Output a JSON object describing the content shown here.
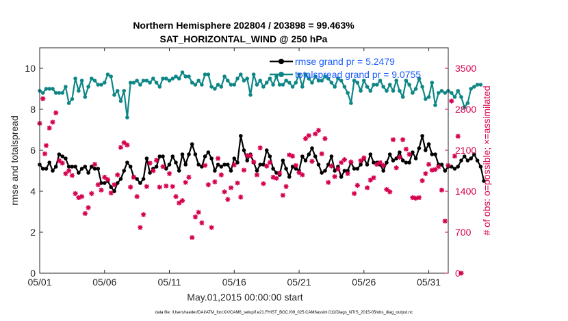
{
  "chart_data": {
    "type": "line",
    "title": "Northern Hemisphere 202804 / 203898 = 99.463%",
    "subtitle": "SAT_HORIZONTAL_WIND @ 250 hPa",
    "xlabel": "May.01,2015 00:00:00 start",
    "ylabel": "rmse and totalspread",
    "ylabel_right": "# of obs: o=possible; ×=assimilated",
    "footnote": "data file: /Users/raeder/DAI/ATM_forcXX/CAM6_setup/f.e21.FHIST_BGC.f09_025.CAM6assim.011/Diags_NTrS_2015-05/obs_diag_output.nc",
    "xlim": [
      0,
      31.5
    ],
    "ylim": [
      0,
      11
    ],
    "ylim_right": [
      0,
      3850
    ],
    "x_tick_labels": [
      "05/01",
      "05/06",
      "05/11",
      "05/16",
      "05/21",
      "05/26",
      "05/31"
    ],
    "x_tick_values": [
      0,
      5,
      10,
      15,
      20,
      25,
      30
    ],
    "y_tick_labels": [
      "0",
      "2",
      "4",
      "6",
      "8",
      "10"
    ],
    "y_tick_values": [
      0,
      2,
      4,
      6,
      8,
      10
    ],
    "y_right_tick_labels": [
      "0",
      "700",
      "1400",
      "2100",
      "2800",
      "3500"
    ],
    "y_right_tick_values": [
      0,
      700,
      1400,
      2100,
      2800,
      3500
    ],
    "legend": [
      {
        "label": "rmse grand pr = 5.2479",
        "color": "#000000"
      },
      {
        "label": "totalspread grand pr = 9.0755",
        "color": "#0e8686"
      }
    ],
    "colors": {
      "rmse": "#000000",
      "spread": "#0e8686",
      "obs": "#d6004f",
      "legend_text": "#1a5cff"
    },
    "x_step_days": 0.25,
    "series": [
      {
        "name": "rmse",
        "values": [
          5.3,
          5.1,
          5.1,
          5.4,
          5.0,
          5.2,
          5.8,
          5.7,
          5.6,
          5.2,
          5.2,
          5.2,
          4.9,
          5.1,
          5.2,
          4.9,
          5.2,
          5.1,
          5.1,
          4.4,
          4.4,
          4.5,
          4.2,
          4.0,
          4.4,
          4.6,
          5.0,
          5.4,
          5.2,
          4.7,
          4.6,
          4.4,
          4.6,
          5.6,
          4.9,
          5.1,
          5.2,
          5.7,
          5.7,
          5.1,
          5.3,
          5.7,
          5.4,
          5.0,
          5.8,
          5.3,
          5.8,
          6.3,
          5.8,
          5.3,
          5.2,
          5.7,
          5.9,
          5.6,
          5.0,
          5.3,
          5.2,
          5.3,
          5.3,
          5.0,
          5.6,
          5.4,
          6.7,
          6.0,
          5.5,
          5.8,
          5.4,
          5.0,
          5.3,
          5.3,
          6.0,
          5.7,
          5.1,
          4.9,
          4.8,
          5.5,
          5.1,
          4.7,
          5.2,
          5.1,
          5.0,
          5.7,
          5.5,
          5.8,
          6.1,
          5.7,
          5.3,
          4.9,
          5.0,
          5.3,
          5.7,
          5.0,
          5.2,
          4.7,
          5.0,
          5.0,
          5.4,
          5.1,
          5.1,
          5.3,
          5.6,
          5.3,
          5.8,
          5.4,
          5.4,
          5.3,
          5.0,
          5.4,
          5.8,
          5.5,
          5.6,
          5.9,
          5.5,
          5.4,
          5.4,
          5.9,
          5.6,
          6.1,
          6.7,
          6.0,
          6.3,
          5.8,
          5.8,
          5.3,
          5.3,
          5.0,
          5.2,
          5.2,
          5.1,
          5.2,
          5.5,
          5.7,
          5.5,
          5.6,
          5.8,
          5.5,
          5.2,
          4.5
        ]
      },
      {
        "name": "totalspread",
        "values": [
          8.9,
          8.8,
          9.0,
          9.0,
          9.0,
          8.8,
          8.8,
          8.8,
          9.1,
          8.3,
          8.5,
          9.5,
          8.9,
          9.4,
          8.6,
          9.1,
          9.5,
          9.4,
          9.2,
          9.2,
          9.3,
          9.7,
          9.6,
          8.7,
          8.9,
          8.4,
          8.9,
          7.6,
          9.3,
          9.3,
          9.4,
          9.2,
          9.4,
          9.4,
          9.3,
          9.5,
          9.3,
          9.1,
          9.5,
          9.5,
          9.4,
          9.5,
          9.6,
          9.5,
          9.8,
          9.6,
          9.6,
          9.3,
          9.2,
          9.4,
          9.2,
          9.7,
          9.7,
          9.1,
          9.0,
          9.2,
          9.1,
          9.6,
          9.4,
          9.2,
          9.2,
          9.5,
          9.7,
          9.4,
          9.5,
          8.7,
          9.7,
          9.2,
          9.4,
          9.1,
          9.3,
          9.5,
          9.2,
          9.6,
          9.2,
          9.2,
          9.4,
          9.3,
          9.1,
          9.3,
          9.7,
          9.1,
          9.7,
          9.5,
          9.3,
          9.6,
          9.4,
          9.4,
          9.6,
          9.5,
          9.3,
          9.1,
          9.5,
          9.4,
          9.1,
          8.8,
          8.3,
          9.4,
          9.3,
          8.9,
          9.4,
          9.1,
          8.9,
          9.2,
          9.2,
          9.4,
          9.1,
          8.9,
          9.2,
          8.9,
          9.4,
          8.9,
          8.6,
          9.4,
          9.2,
          8.8,
          9.0,
          9.5,
          9.1,
          8.5,
          8.6,
          9.3,
          8.2,
          8.8,
          8.9,
          8.8,
          8.9,
          8.8,
          8.6,
          8.9,
          8.6,
          8.1,
          8.3,
          9.0,
          9.1,
          9.2,
          9.2
        ]
      }
    ],
    "obs_points": [
      [
        0.0,
        2560
      ],
      [
        0.25,
        2980
      ],
      [
        0.4,
        2040
      ],
      [
        0.5,
        2180
      ],
      [
        0.75,
        2480
      ],
      [
        1.0,
        2580
      ],
      [
        1.25,
        2740
      ],
      [
        1.5,
        1920
      ],
      [
        1.75,
        1880
      ],
      [
        2.0,
        1700
      ],
      [
        2.25,
        1750
      ],
      [
        2.5,
        1670
      ],
      [
        2.75,
        1360
      ],
      [
        3.0,
        1290
      ],
      [
        3.25,
        1310
      ],
      [
        3.5,
        1020
      ],
      [
        3.75,
        1120
      ],
      [
        4.0,
        1360
      ],
      [
        4.25,
        1860
      ],
      [
        4.5,
        1510
      ],
      [
        4.75,
        1420
      ],
      [
        5.0,
        1640
      ],
      [
        5.25,
        1600
      ],
      [
        5.5,
        1370
      ],
      [
        5.75,
        1510
      ],
      [
        6.0,
        1680
      ],
      [
        6.25,
        2150
      ],
      [
        6.5,
        2230
      ],
      [
        6.75,
        2190
      ],
      [
        7.0,
        1470
      ],
      [
        7.25,
        1640
      ],
      [
        7.5,
        1310
      ],
      [
        7.75,
        780
      ],
      [
        8.0,
        1000
      ],
      [
        8.25,
        1480
      ],
      [
        8.5,
        1880
      ],
      [
        8.75,
        1750
      ],
      [
        9.0,
        1930
      ],
      [
        9.25,
        1470
      ],
      [
        9.5,
        1820
      ],
      [
        9.75,
        1490
      ],
      [
        10.0,
        1700
      ],
      [
        10.25,
        1480
      ],
      [
        10.5,
        1310
      ],
      [
        10.75,
        1200
      ],
      [
        11.0,
        1240
      ],
      [
        11.25,
        1550
      ],
      [
        11.5,
        1640
      ],
      [
        11.75,
        610
      ],
      [
        12.0,
        960
      ],
      [
        12.25,
        1040
      ],
      [
        12.5,
        860
      ],
      [
        12.75,
        1840
      ],
      [
        13.0,
        1510
      ],
      [
        13.25,
        780
      ],
      [
        13.5,
        1560
      ],
      [
        13.75,
        1960
      ],
      [
        14.0,
        1680
      ],
      [
        14.25,
        1390
      ],
      [
        14.5,
        1260
      ],
      [
        14.75,
        1460
      ],
      [
        15.0,
        1850
      ],
      [
        15.25,
        1540
      ],
      [
        15.5,
        1300
      ],
      [
        15.75,
        1760
      ],
      [
        16.0,
        2010
      ],
      [
        16.25,
        2010
      ],
      [
        16.5,
        1900
      ],
      [
        16.75,
        1680
      ],
      [
        17.0,
        2140
      ],
      [
        17.25,
        1530
      ],
      [
        17.5,
        1830
      ],
      [
        17.75,
        1890
      ],
      [
        18.0,
        1640
      ],
      [
        18.25,
        1620
      ],
      [
        18.5,
        1710
      ],
      [
        18.75,
        1330
      ],
      [
        19.0,
        1480
      ],
      [
        19.25,
        2020
      ],
      [
        19.5,
        2000
      ],
      [
        19.75,
        1840
      ],
      [
        20.0,
        1720
      ],
      [
        20.25,
        1680
      ],
      [
        20.5,
        2300
      ],
      [
        20.75,
        2350
      ],
      [
        21.0,
        1910
      ],
      [
        21.25,
        2380
      ],
      [
        21.5,
        2440
      ],
      [
        21.75,
        2040
      ],
      [
        22.0,
        2300
      ],
      [
        22.25,
        1550
      ],
      [
        22.5,
        1830
      ],
      [
        22.75,
        1650
      ],
      [
        23.0,
        1780
      ],
      [
        23.25,
        1890
      ],
      [
        23.5,
        1940
      ],
      [
        23.75,
        1700
      ],
      [
        24.0,
        1900
      ],
      [
        24.25,
        1360
      ],
      [
        24.5,
        1500
      ],
      [
        24.75,
        1920
      ],
      [
        25.0,
        1970
      ],
      [
        25.25,
        1460
      ],
      [
        25.5,
        1590
      ],
      [
        25.75,
        1630
      ],
      [
        26.0,
        1860
      ],
      [
        26.25,
        1890
      ],
      [
        26.5,
        1840
      ],
      [
        26.75,
        1430
      ],
      [
        27.0,
        1390
      ],
      [
        27.25,
        2280
      ],
      [
        27.5,
        1800
      ],
      [
        27.75,
        1980
      ],
      [
        28.0,
        2280
      ],
      [
        28.25,
        2120
      ],
      [
        28.5,
        2030
      ],
      [
        28.75,
        1290
      ],
      [
        29.0,
        1280
      ],
      [
        29.25,
        1290
      ],
      [
        29.5,
        1580
      ],
      [
        29.75,
        1700
      ],
      [
        30.0,
        1860
      ],
      [
        30.25,
        1760
      ],
      [
        30.5,
        1770
      ],
      [
        30.75,
        1820
      ],
      [
        31.0,
        1420
      ],
      [
        31.25,
        890
      ],
      [
        31.5,
        1840
      ],
      [
        31.75,
        2940
      ],
      [
        32.0,
        2000
      ],
      [
        32.25,
        2340
      ],
      [
        32.5,
        0
      ]
    ]
  }
}
